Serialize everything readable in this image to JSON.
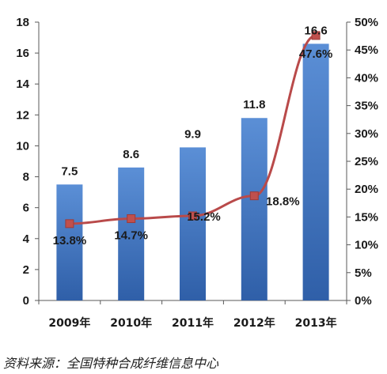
{
  "chart_data": {
    "type": "bar",
    "categories": [
      "2009年",
      "2010年",
      "2011年",
      "2012年",
      "2013年"
    ],
    "series": [
      {
        "type": "bar",
        "axis": "left",
        "values": [
          7.5,
          8.6,
          9.9,
          11.8,
          16.6
        ],
        "labels": [
          "7.5",
          "8.6",
          "9.9",
          "11.8",
          "16.6"
        ]
      },
      {
        "type": "line",
        "axis": "right",
        "values": [
          13.8,
          14.7,
          15.2,
          18.8,
          47.6
        ],
        "labels": [
          "13.8%",
          "14.7%",
          "15.2%",
          "18.8%",
          "47.6%"
        ]
      }
    ],
    "y_left": {
      "ylim": [
        0,
        18
      ],
      "ticks": [
        "0",
        "2",
        "4",
        "6",
        "8",
        "10",
        "12",
        "14",
        "16",
        "18"
      ]
    },
    "y_right": {
      "ylim": [
        0,
        50
      ],
      "ticks": [
        "0%",
        "5%",
        "10%",
        "15%",
        "20%",
        "25%",
        "30%",
        "35%",
        "40%",
        "45%",
        "50%"
      ]
    },
    "grid": false,
    "colors": {
      "bar_top": "#5b8fd6",
      "bar_bottom": "#2f5fa8",
      "line": "#b94a4a",
      "marker": "#c0504d"
    }
  },
  "source": "资料来源：全国特种合成纤维信息中心"
}
